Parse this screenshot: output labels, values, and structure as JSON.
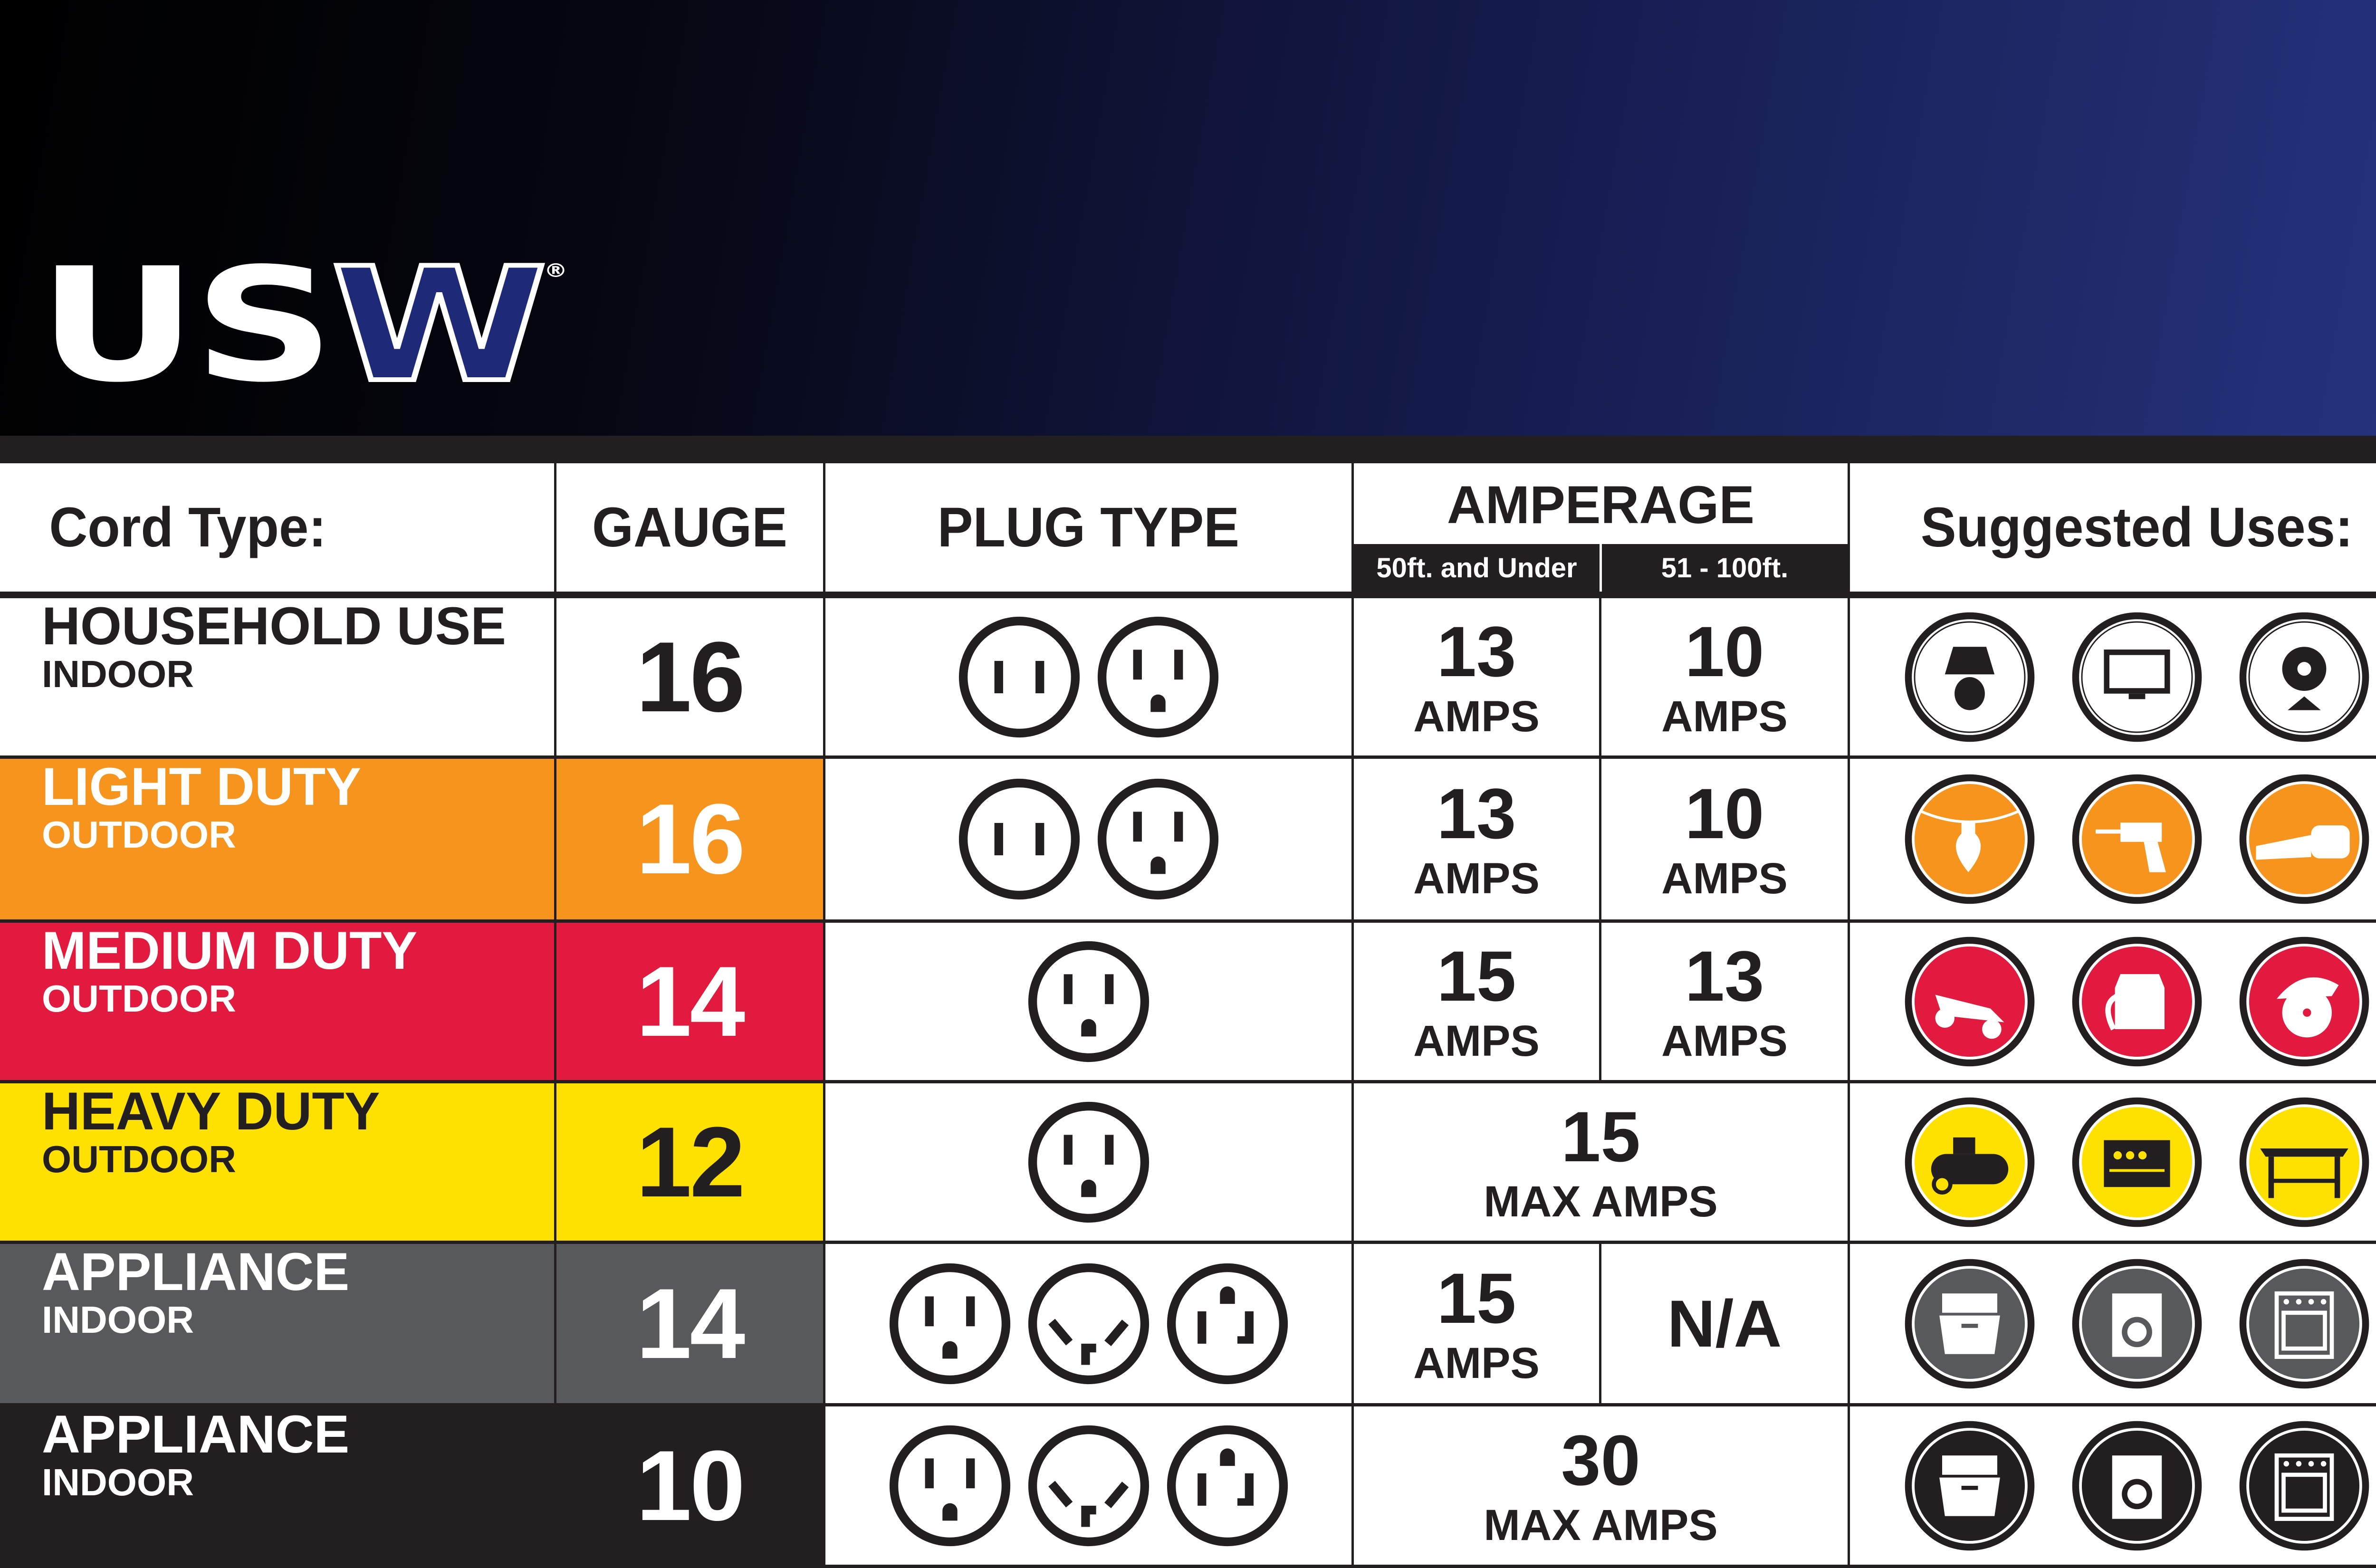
{
  "brand": {
    "logo_text": "USW",
    "registered": "®"
  },
  "table": {
    "headers": {
      "cord_type": "Cord Type:",
      "gauge": "GAUGE",
      "plug_type": "PLUG TYPE",
      "amperage": "AMPERAGE",
      "amp_short": "50ft. and Under",
      "amp_long": "51 - 100ft.",
      "uses": "Suggested Uses:"
    },
    "rows": [
      {
        "name": "HOUSEHOLD USE",
        "location": "INDOOR",
        "gauge": "16",
        "color": "#ffffff",
        "text_color": "#231f20",
        "plugs": [
          "two-prong-outlet",
          "three-prong-outlet"
        ],
        "amps": [
          {
            "value": "13",
            "unit": "AMPS"
          },
          {
            "value": "10",
            "unit": "AMPS"
          }
        ],
        "uses": [
          "lamp",
          "television",
          "fan"
        ],
        "icon_bg": "#ffffff",
        "icon_fg": "#231f20"
      },
      {
        "name": "LIGHT DUTY",
        "location": "OUTDOOR",
        "gauge": "16",
        "color": "#f7941d",
        "text_color": "#ffffff",
        "plugs": [
          "two-prong-outlet",
          "three-prong-outlet"
        ],
        "amps": [
          {
            "value": "13",
            "unit": "AMPS"
          },
          {
            "value": "10",
            "unit": "AMPS"
          }
        ],
        "uses": [
          "string-lights",
          "drill",
          "leaf-blower"
        ],
        "icon_bg": "#f7941d",
        "icon_fg": "#ffffff"
      },
      {
        "name": "MEDIUM DUTY",
        "location": "OUTDOOR",
        "gauge": "14",
        "color": "#e31a3f",
        "text_color": "#ffffff",
        "plugs": [
          "three-prong-outlet"
        ],
        "amps": [
          {
            "value": "15",
            "unit": "AMPS"
          },
          {
            "value": "13",
            "unit": "AMPS"
          }
        ],
        "uses": [
          "lawn-mower",
          "shop-vac",
          "circular-saw"
        ],
        "icon_bg": "#e31a3f",
        "icon_fg": "#ffffff"
      },
      {
        "name": "HEAVY DUTY",
        "location": "OUTDOOR",
        "gauge": "12",
        "color": "#ffe100",
        "text_color": "#231f20",
        "plugs": [
          "three-prong-outlet"
        ],
        "max": {
          "value": "15",
          "unit": "MAX AMPS"
        },
        "uses": [
          "air-compressor",
          "generator",
          "table-saw"
        ],
        "icon_bg": "#ffe100",
        "icon_fg": "#231f20"
      },
      {
        "name": "APPLIANCE",
        "location": "INDOOR",
        "gauge": "14",
        "color": "#58595b",
        "text_color": "#ffffff",
        "plugs": [
          "three-prong-outlet",
          "30a-dryer-outlet",
          "20a-t-slot-outlet"
        ],
        "amps": [
          {
            "value": "15",
            "unit": "AMPS"
          },
          {
            "value": "N/A"
          }
        ],
        "uses": [
          "dishwasher",
          "washing-machine",
          "oven"
        ],
        "icon_bg": "#58595b",
        "icon_fg": "#ffffff"
      },
      {
        "name": "APPLIANCE",
        "location": "INDOOR",
        "gauge": "10",
        "color": "#231f20",
        "text_color": "#ffffff",
        "plugs": [
          "three-prong-outlet",
          "30a-dryer-outlet",
          "20a-t-slot-outlet"
        ],
        "max": {
          "value": "30",
          "unit": "MAX AMPS"
        },
        "uses": [
          "dishwasher",
          "washing-machine",
          "oven"
        ],
        "icon_bg": "#231f20",
        "icon_fg": "#ffffff"
      }
    ]
  }
}
